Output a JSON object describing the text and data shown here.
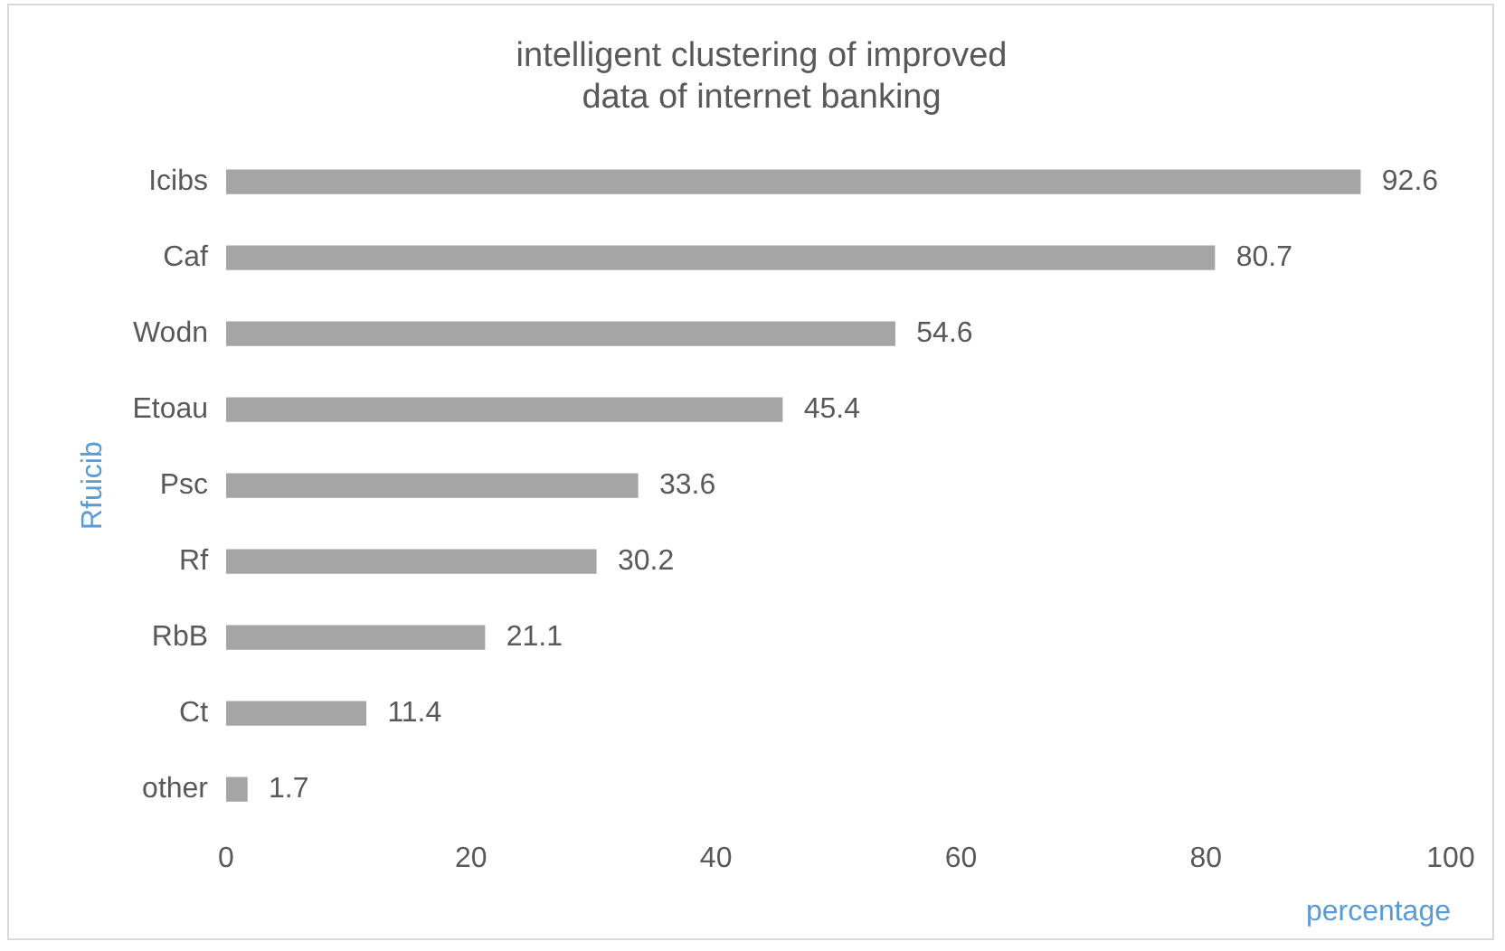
{
  "chart_data": {
    "type": "bar",
    "orientation": "horizontal",
    "title": "intelligent clustering of improved data of internet banking",
    "xlabel": "percentage",
    "ylabel": "Rfuicib",
    "categories": [
      "Icibs",
      "Caf",
      "Wodn",
      "Etoau",
      "Psc",
      "Rf",
      "RbB",
      "Ct",
      "other"
    ],
    "values": [
      92.6,
      80.7,
      54.6,
      45.4,
      33.6,
      30.2,
      21.1,
      11.4,
      1.7
    ],
    "color": "#a5a5a5",
    "xlim": [
      0,
      100
    ],
    "xticks": [
      0,
      20,
      40,
      60,
      80,
      100
    ],
    "grid": false,
    "legend": false,
    "data_labels": true
  }
}
